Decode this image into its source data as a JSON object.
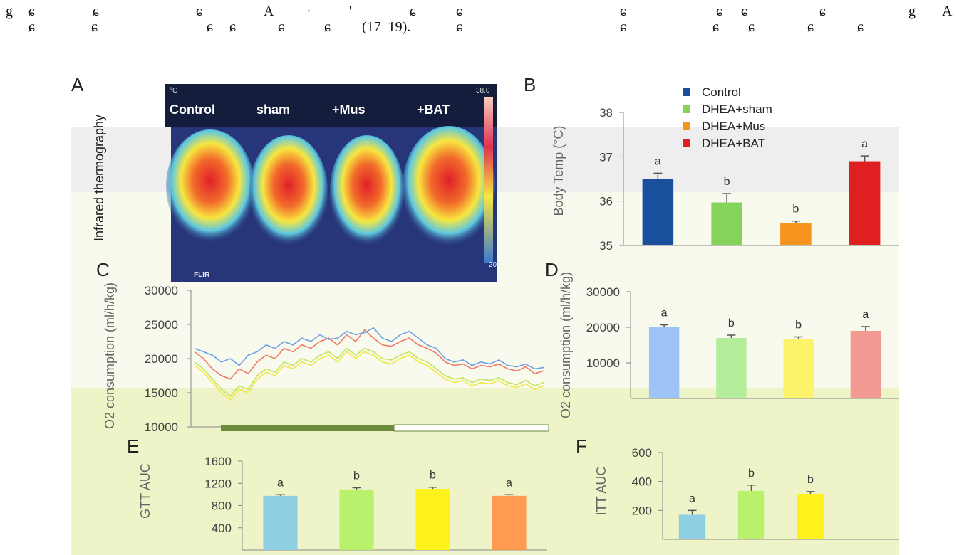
{
  "header": {
    "line1": [
      "g",
      "ɕ",
      "ɕ",
      "ɕ",
      "A",
      "·",
      "'",
      "ɕ",
      "ɕ",
      "ɕ",
      "ɕ",
      "ɕ",
      "ɕ",
      "g",
      "A"
    ],
    "line2": [
      "ɕ",
      "ɕ",
      "ɕ",
      "ɕ",
      "ɕ",
      "ɕ",
      "(17–19).",
      "ɕ",
      "ɕ",
      "ɕ",
      "ɕ",
      "ɕ",
      "ɕ"
    ]
  },
  "thermography": {
    "panel": "A",
    "y_label": "Infrared thermography",
    "unit": "°C",
    "scale_max": "38.0",
    "scale_min": "20.0",
    "brand": "FLIR",
    "groups": [
      "Control",
      "sham",
      "+Mus",
      "+BAT"
    ]
  },
  "chart_data": [
    {
      "type": "bar",
      "panel": "B",
      "y_label": "Body Temp (°C)",
      "ylim": [
        35,
        38
      ],
      "yticks": [
        35,
        36,
        37,
        38
      ],
      "series": [
        {
          "name": "Control",
          "color": "#1a4f9e",
          "values": [
            36.5
          ],
          "errors": [
            0.13
          ],
          "letter": "a"
        },
        {
          "name": "DHEA+sham",
          "color": "#86d35c",
          "values": [
            35.97
          ],
          "errors": [
            0.2
          ],
          "letter": "b"
        },
        {
          "name": "DHEA+Mus",
          "color": "#f7941d",
          "values": [
            35.5
          ],
          "errors": [
            0.05
          ],
          "letter": "b"
        },
        {
          "name": "DHEA+BAT",
          "color": "#e02020",
          "values": [
            36.9
          ],
          "errors": [
            0.12
          ],
          "letter": "a"
        }
      ]
    },
    {
      "type": "line",
      "panel": "C",
      "y_label": "O2 consumption (ml/h/kg)",
      "ylim": [
        10000,
        30000
      ],
      "yticks": [
        10000,
        15000,
        20000,
        25000,
        30000
      ],
      "series": [
        {
          "color": "#c4e35a",
          "values": [
            19500,
            18500,
            17000,
            15500,
            14500,
            16000,
            15500,
            17500,
            18500,
            18000,
            19500,
            19000,
            20000,
            19500,
            20500,
            21000,
            20000,
            21500,
            20500,
            21500,
            21000,
            20000,
            19800,
            20500,
            21000,
            20000,
            19500,
            18500,
            17500,
            17000,
            17200,
            16500,
            17000,
            16800,
            17200,
            16500,
            16200,
            16800,
            16000,
            16500
          ]
        },
        {
          "color": "#f2e640",
          "values": [
            19000,
            18000,
            16500,
            15000,
            14000,
            15500,
            15000,
            17000,
            18000,
            17500,
            19000,
            18500,
            19500,
            19000,
            20000,
            20500,
            19500,
            21000,
            20000,
            21000,
            20500,
            19500,
            19200,
            20000,
            20500,
            19500,
            19000,
            18000,
            17000,
            16500,
            16800,
            16000,
            16500,
            16300,
            16800,
            16000,
            15800,
            16300,
            15500,
            16000
          ]
        },
        {
          "color": "#f07a6a",
          "values": [
            21000,
            20000,
            18500,
            17500,
            17000,
            18500,
            17800,
            19500,
            20500,
            20000,
            21500,
            21000,
            22000,
            21500,
            22500,
            23000,
            22000,
            23500,
            22500,
            24200,
            23000,
            22000,
            21800,
            22500,
            23000,
            22000,
            21500,
            20800,
            19500,
            19000,
            19200,
            18500,
            19000,
            18800,
            19200,
            18500,
            18200,
            18800,
            17800,
            18200
          ]
        },
        {
          "color": "#6fa0e6",
          "values": [
            21500,
            21000,
            20500,
            19500,
            20000,
            19000,
            20500,
            21000,
            22000,
            21500,
            22500,
            22000,
            23000,
            22500,
            23500,
            22800,
            23000,
            24000,
            23500,
            23800,
            24500,
            23000,
            22500,
            23500,
            24000,
            23000,
            22000,
            21500,
            20000,
            19500,
            19800,
            19000,
            19500,
            19200,
            19800,
            19000,
            18800,
            19200,
            18500,
            18700
          ]
        }
      ]
    },
    {
      "type": "bar",
      "panel": "D",
      "y_label": "O2 consumption (ml/h/kg)",
      "ylim": [
        0,
        30000
      ],
      "yticks": [
        10000,
        20000,
        30000
      ],
      "values": [
        20000,
        17000,
        16800,
        19000
      ],
      "errors": [
        700,
        800,
        500,
        1200
      ],
      "letters": [
        "a",
        "b",
        "b",
        "a"
      ],
      "colors": [
        "#9ec3f5",
        "#b5ee9a",
        "#fdf36a",
        "#f59a92"
      ]
    },
    {
      "type": "bar",
      "panel": "E",
      "y_label": "GTT AUC",
      "ylim": [
        0,
        1600
      ],
      "yticks": [
        400,
        800,
        1200,
        1600
      ],
      "values": [
        975,
        1090,
        1100,
        975
      ],
      "errors": [
        20,
        30,
        30,
        20
      ],
      "letters": [
        "a",
        "b",
        "b",
        "a"
      ],
      "colors": [
        "#8ecfe4",
        "#b9f06c",
        "#fff21c",
        "#ff9a50"
      ]
    },
    {
      "type": "bar",
      "panel": "F",
      "y_label": "ITT AUC",
      "ylim": [
        0,
        600
      ],
      "yticks": [
        200,
        400,
        600
      ],
      "values": [
        170,
        335,
        315,
        null
      ],
      "errors": [
        30,
        40,
        15,
        null
      ],
      "letters": [
        "a",
        "b",
        "b",
        null
      ],
      "colors": [
        "#8ecfe4",
        "#b9f06c",
        "#fff21c",
        "#ff9a50"
      ]
    }
  ]
}
